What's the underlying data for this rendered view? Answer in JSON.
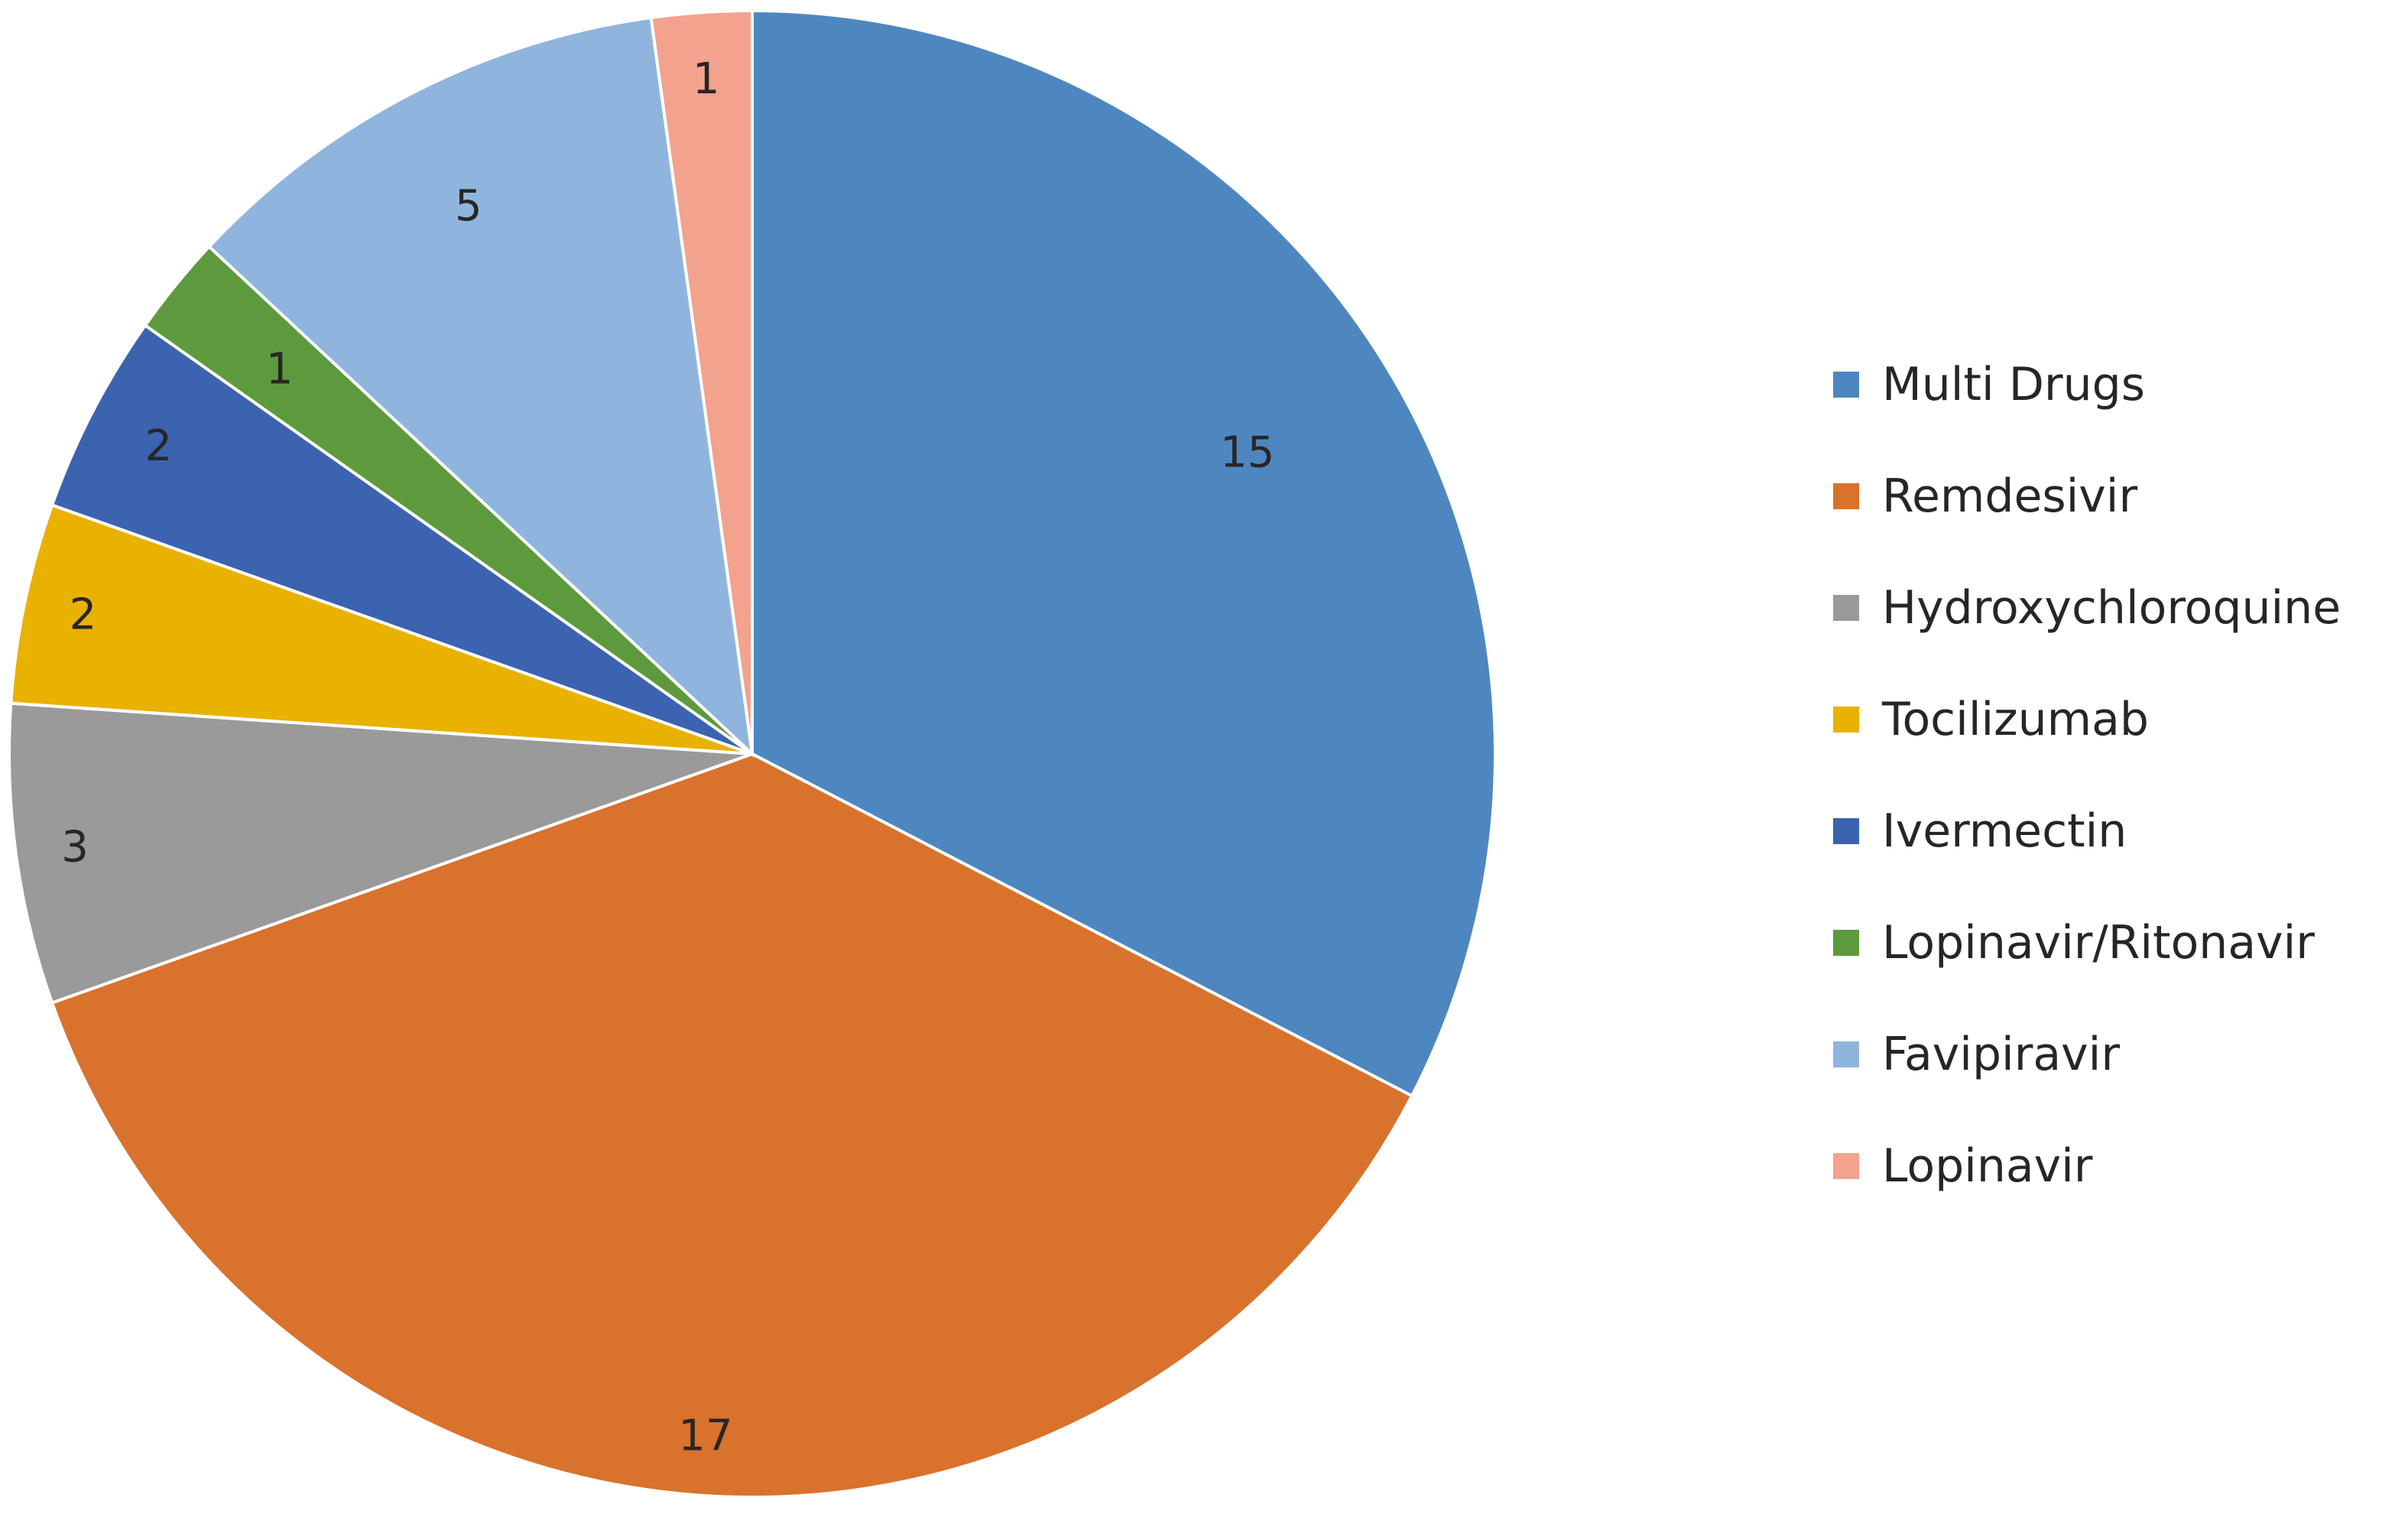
{
  "chart_data": {
    "type": "pie",
    "title": "",
    "series": [
      {
        "values": [
          15,
          17,
          3,
          2,
          2,
          1,
          5,
          1
        ]
      }
    ],
    "categories": [
      "Multi Drugs",
      "Remdesivir",
      "Hydroxychloroquine",
      "Tocilizumab",
      "Ivermectin",
      "Lopinavir/Ritonavir",
      "Favipiravir",
      "Lopinavir"
    ],
    "data_labels": [
      "15",
      "17",
      "3",
      "2",
      "2",
      "1",
      "5",
      "1"
    ],
    "colors": [
      "#4e87bf",
      "#d9722c",
      "#9a9a9a",
      "#e9b100",
      "#3c63b0",
      "#5d9a3d",
      "#8fb5de",
      "#f2a28d"
    ],
    "legend_position": "right",
    "start_angle": "12 o'clock",
    "direction": "clockwise"
  }
}
